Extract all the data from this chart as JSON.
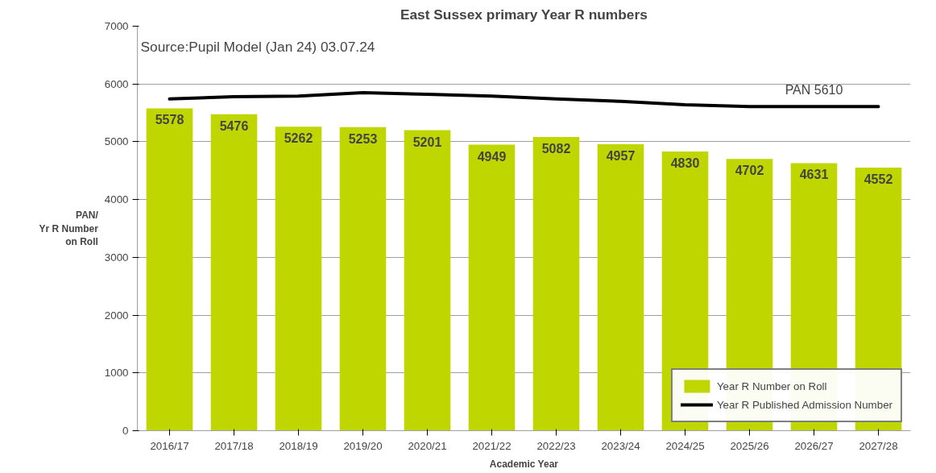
{
  "chart_data": {
    "type": "bar",
    "title": "East Sussex primary Year R numbers",
    "xlabel": "Academic Year",
    "ylabel": "PAN/\nYr R Number\non Roll",
    "categories": [
      "2016/17",
      "2017/18",
      "2018/19",
      "2019/20",
      "2020/21",
      "2021/22",
      "2022/23",
      "2023/24",
      "2024/25",
      "2025/26",
      "2026/27",
      "2027/28"
    ],
    "series": [
      {
        "name": "Year R Number on Roll",
        "color": "#bfd600",
        "values": [
          5578,
          5476,
          5262,
          5253,
          5201,
          4949,
          5082,
          4957,
          4830,
          4702,
          4631,
          4552
        ],
        "data_labels": true
      },
      {
        "name": "Year R Published Admission Number",
        "type": "line",
        "color": "#000000",
        "values": [
          5740,
          5780,
          5790,
          5850,
          5820,
          5790,
          5740,
          5700,
          5640,
          5610,
          5610,
          5610
        ]
      }
    ],
    "ylim": [
      0,
      7000
    ],
    "yticks": [
      0,
      1000,
      2000,
      3000,
      4000,
      5000,
      6000,
      7000
    ],
    "grid": "y",
    "legend": "bottom right",
    "marker": "none",
    "line_style": "solid",
    "annotations": [
      "Source:Pupil Model (Jan 24) 03.07.24",
      {
        "text": "PAN 5610",
        "x": "2026/27",
        "y": 5610
      }
    ]
  }
}
